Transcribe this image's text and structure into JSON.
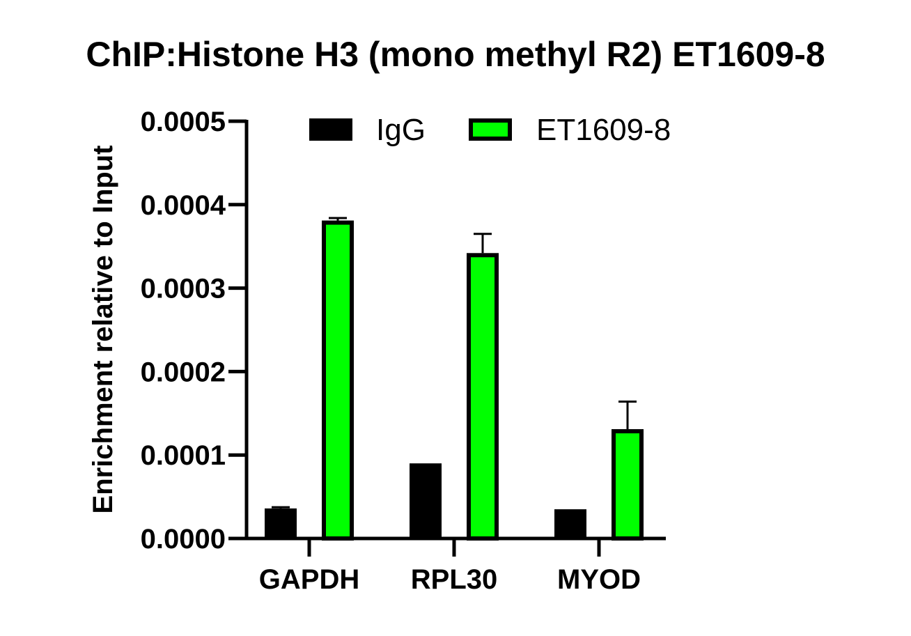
{
  "chart_data": {
    "type": "bar",
    "title": "ChIP:Histone H3 (mono methyl R2) ET1609-8",
    "xlabel": "",
    "ylabel": "Enrichment relative to Input",
    "categories": [
      "GAPDH",
      "RPL30",
      "MYOD"
    ],
    "series": [
      {
        "name": "IgG",
        "color": "#000000",
        "values": [
          3.6e-05,
          9e-05,
          3.5e-05
        ],
        "errors": [
          1.5e-06,
          0,
          0
        ]
      },
      {
        "name": "ET1609-8",
        "color": "#00ff00",
        "values": [
          0.000381,
          0.000342,
          0.000131
        ],
        "errors": [
          3e-06,
          2.3e-05,
          3.3e-05
        ]
      }
    ],
    "ylim": [
      0,
      0.0005
    ],
    "yticks": [
      "0.0000",
      "0.0001",
      "0.0002",
      "0.0003",
      "0.0004",
      "0.0005"
    ],
    "yticks_values": [
      0,
      0.0001,
      0.0002,
      0.0003,
      0.0004,
      0.0005
    ],
    "legend": "top-center",
    "grid": false
  }
}
